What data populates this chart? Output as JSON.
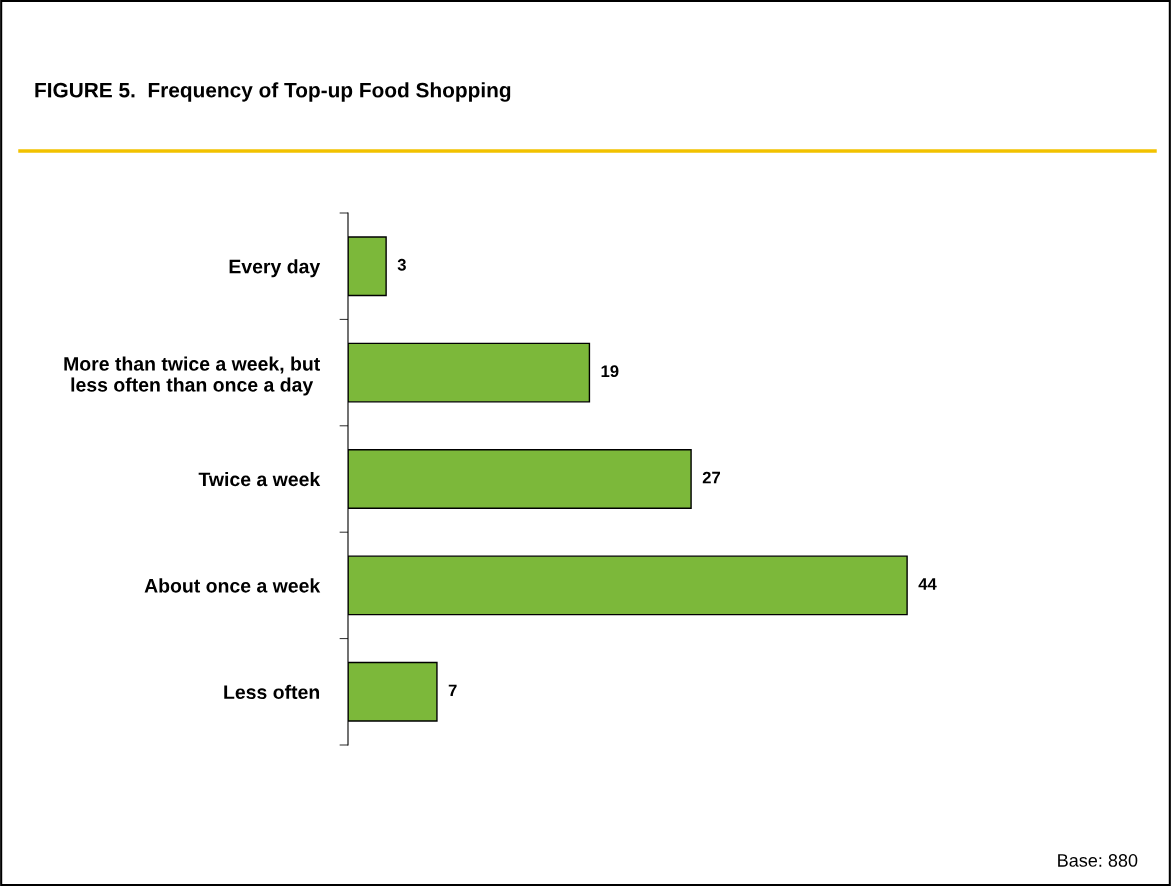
{
  "chart_data": {
    "type": "bar",
    "orientation": "horizontal",
    "title": "FIGURE 5.  Frequency of Top-up Food Shopping",
    "categories": [
      "Every day",
      "More than twice a week, but\nless often than once a day",
      "Twice a week",
      "About once a week",
      "Less often"
    ],
    "values": [
      3,
      19,
      27,
      44,
      7
    ],
    "color": "#7cb83a",
    "data_labels": true,
    "annotations": [
      "Base: 880"
    ]
  }
}
